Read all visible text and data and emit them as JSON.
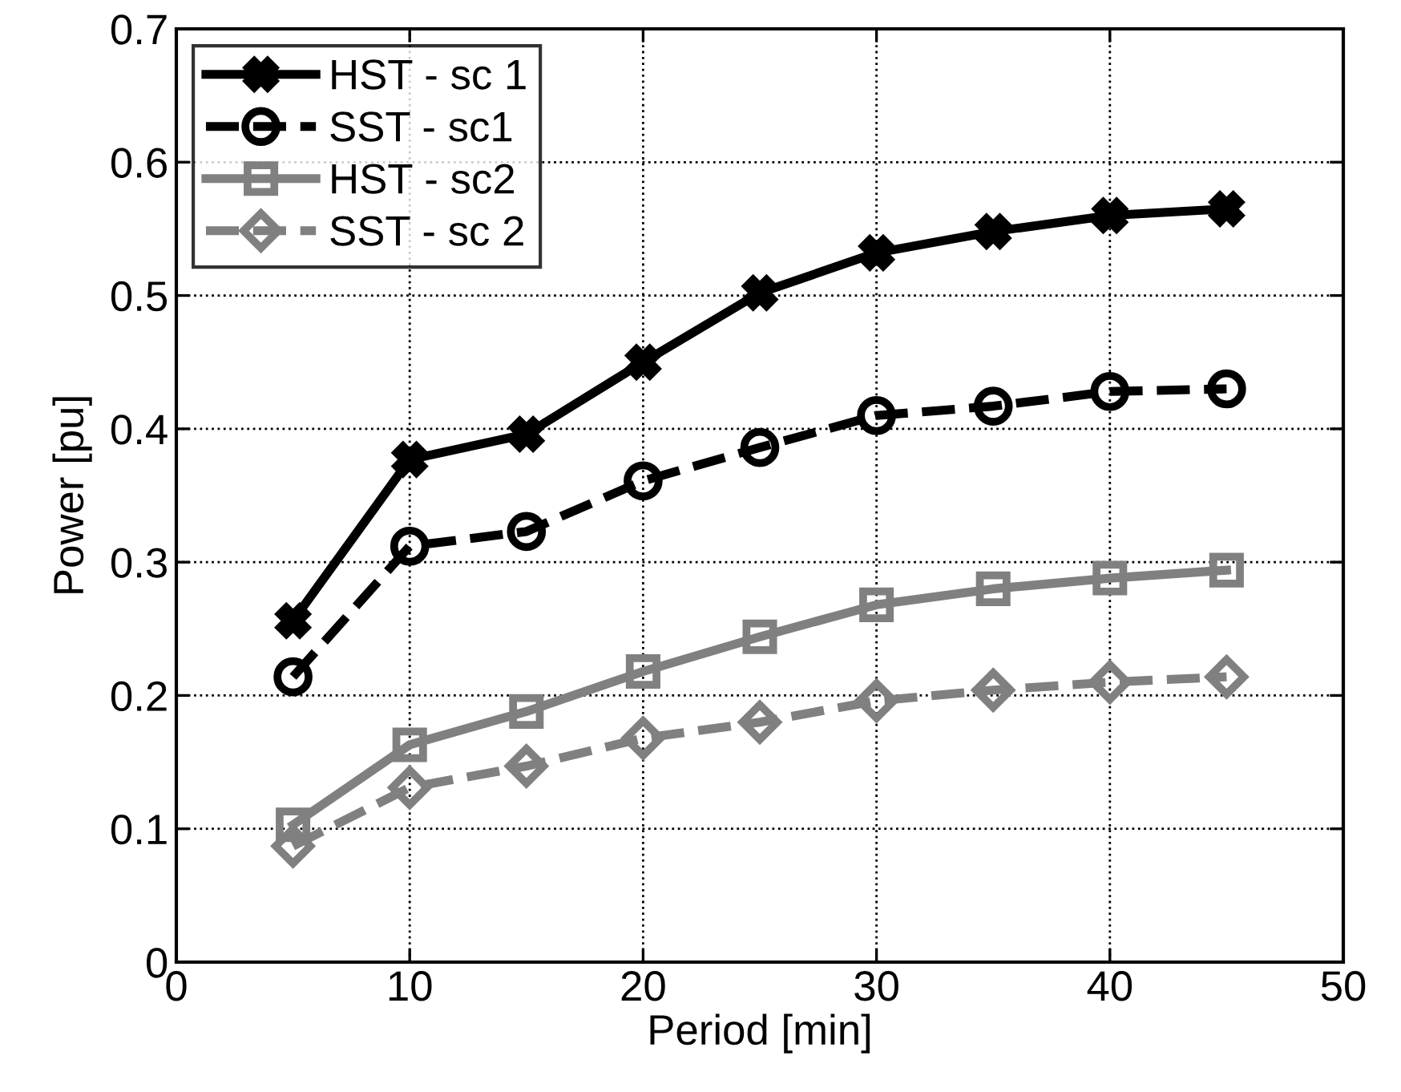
{
  "chart_data": {
    "type": "line",
    "xlabel": "Period [min]",
    "ylabel": "Power [pu]",
    "x": [
      5,
      10,
      15,
      20,
      25,
      30,
      35,
      40,
      45
    ],
    "series": [
      {
        "name": "HST - sc 1",
        "color": "#000000",
        "marker": "cross",
        "line_style": "solid",
        "values": [
          0.256,
          0.377,
          0.396,
          0.45,
          0.502,
          0.532,
          0.548,
          0.56,
          0.565
        ]
      },
      {
        "name": "SST - sc1",
        "color": "#000000",
        "marker": "circle",
        "line_style": "dashed",
        "values": [
          0.214,
          0.312,
          0.323,
          0.361,
          0.386,
          0.41,
          0.417,
          0.428,
          0.43
        ]
      },
      {
        "name": "HST - sc2",
        "color": "#808080",
        "marker": "square",
        "line_style": "solid",
        "values": [
          0.103,
          0.163,
          0.188,
          0.218,
          0.244,
          0.268,
          0.28,
          0.288,
          0.294
        ]
      },
      {
        "name": "SST - sc 2",
        "color": "#808080",
        "marker": "diamond",
        "line_style": "dashed",
        "values": [
          0.087,
          0.131,
          0.147,
          0.168,
          0.18,
          0.196,
          0.204,
          0.21,
          0.214
        ]
      }
    ],
    "xlim": [
      0,
      50
    ],
    "xticks": [
      0,
      10,
      20,
      30,
      40,
      50
    ],
    "ylim": [
      0,
      0.7
    ],
    "yticks": [
      {
        "value": 0,
        "label": "0"
      },
      0.1,
      0.2,
      0.3,
      0.4,
      0.5,
      0.6,
      0.7
    ],
    "grid": true,
    "legend": "top left"
  }
}
